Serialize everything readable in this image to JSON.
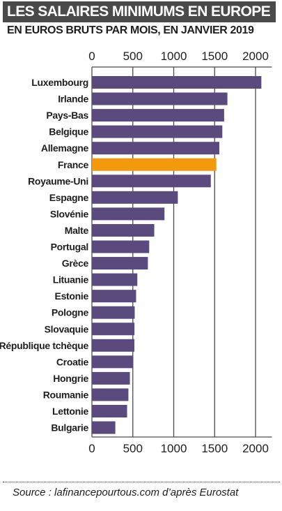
{
  "header": {
    "title": "LES SALAIRES MINIMUMS EN EUROPE",
    "subtitle": "EN EUROS BRUTS PAR MOIS, EN JANVIER 2019"
  },
  "footer": {
    "source": "Source : lafinancepourtous.com d’après Eurostat"
  },
  "colors": {
    "bar": "#5b4a7d",
    "highlight": "#f39a0c",
    "grid": "#4a4a4a",
    "title_bg": "#4a4a4a"
  },
  "chart_data": {
    "type": "bar",
    "orientation": "horizontal",
    "title": "LES SALAIRES MINIMUMS EN EUROPE",
    "subtitle": "EN EUROS BRUTS PAR MOIS, EN JANVIER 2019",
    "xlim": [
      0,
      2200
    ],
    "ticks": [
      0,
      500,
      1000,
      1500,
      2000
    ],
    "tick_labels": [
      "0",
      "500",
      "1000",
      "1500",
      "2000"
    ],
    "tick_position": "top and bottom",
    "grid": true,
    "highlight": "France",
    "categories": [
      "Luxembourg",
      "Irlande",
      "Pays-Bas",
      "Belgique",
      "Allemagne",
      "France",
      "Royaume-Uni",
      "Espagne",
      "Slovénie",
      "Malte",
      "Portugal",
      "Grèce",
      "Lituanie",
      "Estonie",
      "Pologne",
      "Slovaquie",
      "République tchèque",
      "Croatie",
      "Hongrie",
      "Roumanie",
      "Lettonie",
      "Bulgarie"
    ],
    "values": [
      2071,
      1656,
      1616,
      1594,
      1557,
      1521,
      1453,
      1050,
      887,
      762,
      700,
      684,
      555,
      540,
      523,
      520,
      519,
      506,
      464,
      446,
      430,
      286
    ]
  }
}
